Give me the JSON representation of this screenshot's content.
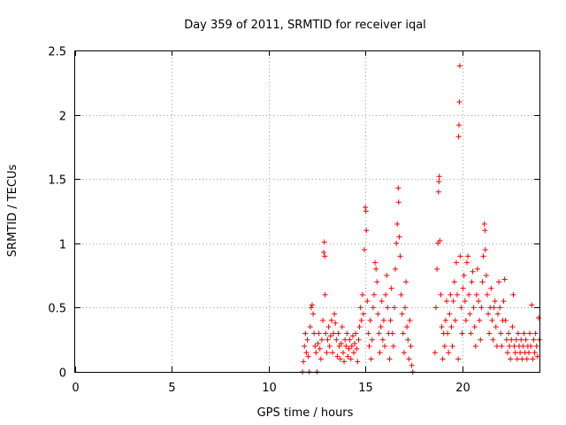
{
  "chart_data": {
    "type": "scatter",
    "title": "Day 359 of 2011, SRMTID for receiver iqal",
    "xlabel": "GPS time / hours",
    "ylabel": "SRMTID / TECUs",
    "xlim": [
      0,
      24
    ],
    "ylim": [
      0,
      2.5
    ],
    "xticks": [
      0,
      5,
      10,
      15,
      20
    ],
    "yticks": [
      0,
      0.5,
      1,
      1.5,
      2,
      2.5
    ],
    "xtick_labels": [
      "0",
      "5",
      "10",
      "15",
      "20"
    ],
    "ytick_labels": [
      "0",
      "0.5",
      "1",
      "1.5",
      "2",
      "2.5"
    ],
    "grid": true,
    "marker": "+",
    "color": "#ff0000",
    "series": [
      {
        "name": "SRMTID",
        "points": [
          [
            11.75,
            0.0
          ],
          [
            11.8,
            0.08
          ],
          [
            11.85,
            0.2
          ],
          [
            11.9,
            0.3
          ],
          [
            11.95,
            0.15
          ],
          [
            12.0,
            0.25
          ],
          [
            12.05,
            0.12
          ],
          [
            12.1,
            0.0
          ],
          [
            12.15,
            0.35
          ],
          [
            12.2,
            0.5
          ],
          [
            12.25,
            0.52
          ],
          [
            12.3,
            0.45
          ],
          [
            12.35,
            0.3
          ],
          [
            12.4,
            0.2
          ],
          [
            12.45,
            0.15
          ],
          [
            12.5,
            0.0
          ],
          [
            12.55,
            0.22
          ],
          [
            12.6,
            0.3
          ],
          [
            12.65,
            0.18
          ],
          [
            12.7,
            0.1
          ],
          [
            12.75,
            0.25
          ],
          [
            12.8,
            0.4
          ],
          [
            12.85,
            0.93
          ],
          [
            12.88,
            1.01
          ],
          [
            12.9,
            0.9
          ],
          [
            12.92,
            0.6
          ],
          [
            12.95,
            0.3
          ],
          [
            13.0,
            0.15
          ],
          [
            13.05,
            0.25
          ],
          [
            13.1,
            0.35
          ],
          [
            13.15,
            0.2
          ],
          [
            13.2,
            0.28
          ],
          [
            13.25,
            0.4
          ],
          [
            13.3,
            0.15
          ],
          [
            13.35,
            0.3
          ],
          [
            13.4,
            0.45
          ],
          [
            13.45,
            0.38
          ],
          [
            13.5,
            0.25
          ],
          [
            13.55,
            0.12
          ],
          [
            13.6,
            0.3
          ],
          [
            13.65,
            0.2
          ],
          [
            13.7,
            0.1
          ],
          [
            13.75,
            0.22
          ],
          [
            13.8,
            0.35
          ],
          [
            13.85,
            0.15
          ],
          [
            13.9,
            0.08
          ],
          [
            13.95,
            0.25
          ],
          [
            14.0,
            0.2
          ],
          [
            14.05,
            0.3
          ],
          [
            14.1,
            0.12
          ],
          [
            14.15,
            0.18
          ],
          [
            14.2,
            0.25
          ],
          [
            14.25,
            0.1
          ],
          [
            14.3,
            0.2
          ],
          [
            14.35,
            0.28
          ],
          [
            14.4,
            0.15
          ],
          [
            14.45,
            0.22
          ],
          [
            14.5,
            0.3
          ],
          [
            14.55,
            0.18
          ],
          [
            14.6,
            0.08
          ],
          [
            14.65,
            0.25
          ],
          [
            14.7,
            0.35
          ],
          [
            14.75,
            0.5
          ],
          [
            14.8,
            0.4
          ],
          [
            14.85,
            0.6
          ],
          [
            14.9,
            0.45
          ],
          [
            14.95,
            0.95
          ],
          [
            15.0,
            1.28
          ],
          [
            15.03,
            1.25
          ],
          [
            15.05,
            1.1
          ],
          [
            15.1,
            0.55
          ],
          [
            15.15,
            0.3
          ],
          [
            15.2,
            0.2
          ],
          [
            15.25,
            0.4
          ],
          [
            15.3,
            0.1
          ],
          [
            15.35,
            0.25
          ],
          [
            15.4,
            0.5
          ],
          [
            15.45,
            0.6
          ],
          [
            15.5,
            0.85
          ],
          [
            15.55,
            0.8
          ],
          [
            15.6,
            0.7
          ],
          [
            15.65,
            0.45
          ],
          [
            15.7,
            0.3
          ],
          [
            15.75,
            0.15
          ],
          [
            15.8,
            0.35
          ],
          [
            15.85,
            0.55
          ],
          [
            15.9,
            0.25
          ],
          [
            15.95,
            0.4
          ],
          [
            16.0,
            0.2
          ],
          [
            16.05,
            0.6
          ],
          [
            16.1,
            0.75
          ],
          [
            16.15,
            0.5
          ],
          [
            16.2,
            0.3
          ],
          [
            16.25,
            0.1
          ],
          [
            16.3,
            0.4
          ],
          [
            16.35,
            0.65
          ],
          [
            16.4,
            0.3
          ],
          [
            16.45,
            0.2
          ],
          [
            16.5,
            0.5
          ],
          [
            16.55,
            0.8
          ],
          [
            16.6,
            1.0
          ],
          [
            16.65,
            1.15
          ],
          [
            16.7,
            1.43
          ],
          [
            16.72,
            1.32
          ],
          [
            16.75,
            1.05
          ],
          [
            16.8,
            0.9
          ],
          [
            16.85,
            0.6
          ],
          [
            16.9,
            0.45
          ],
          [
            16.95,
            0.3
          ],
          [
            17.0,
            0.15
          ],
          [
            17.05,
            0.5
          ],
          [
            17.1,
            0.7
          ],
          [
            17.15,
            0.35
          ],
          [
            17.2,
            0.25
          ],
          [
            17.25,
            0.1
          ],
          [
            17.3,
            0.4
          ],
          [
            17.35,
            0.2
          ],
          [
            17.4,
            0.05
          ],
          [
            17.45,
            0.0
          ],
          [
            18.6,
            0.15
          ],
          [
            18.65,
            0.5
          ],
          [
            18.7,
            0.8
          ],
          [
            18.75,
            1.0
          ],
          [
            18.78,
            1.4
          ],
          [
            18.8,
            1.48
          ],
          [
            18.82,
            1.52
          ],
          [
            18.85,
            1.02
          ],
          [
            18.9,
            0.6
          ],
          [
            18.95,
            0.35
          ],
          [
            19.0,
            0.1
          ],
          [
            19.05,
            0.3
          ],
          [
            19.1,
            0.2
          ],
          [
            19.15,
            0.4
          ],
          [
            19.2,
            0.55
          ],
          [
            19.25,
            0.3
          ],
          [
            19.3,
            0.15
          ],
          [
            19.35,
            0.45
          ],
          [
            19.4,
            0.6
          ],
          [
            19.45,
            0.35
          ],
          [
            19.5,
            0.2
          ],
          [
            19.55,
            0.55
          ],
          [
            19.6,
            0.7
          ],
          [
            19.65,
            0.4
          ],
          [
            19.7,
            0.85
          ],
          [
            19.75,
            0.6
          ],
          [
            19.8,
            0.1
          ],
          [
            19.82,
            1.83
          ],
          [
            19.84,
            1.92
          ],
          [
            19.86,
            2.1
          ],
          [
            19.88,
            2.38
          ],
          [
            19.9,
            0.9
          ],
          [
            19.95,
            0.5
          ],
          [
            20.0,
            0.3
          ],
          [
            20.05,
            0.65
          ],
          [
            20.1,
            0.75
          ],
          [
            20.15,
            0.55
          ],
          [
            20.2,
            0.4
          ],
          [
            20.25,
            0.85
          ],
          [
            20.3,
            0.9
          ],
          [
            20.35,
            0.6
          ],
          [
            20.4,
            0.45
          ],
          [
            20.45,
            0.3
          ],
          [
            20.5,
            0.7
          ],
          [
            20.55,
            0.78
          ],
          [
            20.6,
            0.5
          ],
          [
            20.65,
            0.35
          ],
          [
            20.7,
            0.2
          ],
          [
            20.75,
            0.6
          ],
          [
            20.8,
            0.8
          ],
          [
            20.85,
            0.55
          ],
          [
            20.9,
            0.4
          ],
          [
            20.95,
            0.25
          ],
          [
            21.0,
            0.5
          ],
          [
            21.05,
            0.7
          ],
          [
            21.1,
            0.9
          ],
          [
            21.15,
            1.15
          ],
          [
            21.18,
            1.1
          ],
          [
            21.2,
            0.95
          ],
          [
            21.25,
            0.75
          ],
          [
            21.3,
            0.6
          ],
          [
            21.35,
            0.45
          ],
          [
            21.4,
            0.3
          ],
          [
            21.45,
            0.5
          ],
          [
            21.5,
            0.65
          ],
          [
            21.55,
            0.4
          ],
          [
            21.6,
            0.25
          ],
          [
            21.65,
            0.5
          ],
          [
            21.7,
            0.55
          ],
          [
            21.75,
            0.35
          ],
          [
            21.8,
            0.2
          ],
          [
            21.85,
            0.45
          ],
          [
            21.9,
            0.7
          ],
          [
            21.95,
            0.5
          ],
          [
            22.0,
            0.3
          ],
          [
            22.05,
            0.2
          ],
          [
            22.1,
            0.4
          ],
          [
            22.15,
            0.55
          ],
          [
            22.2,
            0.72
          ],
          [
            22.25,
            0.4
          ],
          [
            22.3,
            0.25
          ],
          [
            22.35,
            0.15
          ],
          [
            22.4,
            0.3
          ],
          [
            22.45,
            0.2
          ],
          [
            22.5,
            0.1
          ],
          [
            22.55,
            0.25
          ],
          [
            22.6,
            0.35
          ],
          [
            22.65,
            0.6
          ],
          [
            22.7,
            0.2
          ],
          [
            22.75,
            0.15
          ],
          [
            22.8,
            0.25
          ],
          [
            22.85,
            0.1
          ],
          [
            22.9,
            0.3
          ],
          [
            22.95,
            0.2
          ],
          [
            23.0,
            0.15
          ],
          [
            23.05,
            0.25
          ],
          [
            23.1,
            0.1
          ],
          [
            23.15,
            0.2
          ],
          [
            23.2,
            0.3
          ],
          [
            23.25,
            0.15
          ],
          [
            23.3,
            0.25
          ],
          [
            23.35,
            0.1
          ],
          [
            23.4,
            0.2
          ],
          [
            23.45,
            0.15
          ],
          [
            23.5,
            0.3
          ],
          [
            23.55,
            0.2
          ],
          [
            23.6,
            0.52
          ],
          [
            23.65,
            0.1
          ],
          [
            23.7,
            0.25
          ],
          [
            23.75,
            0.15
          ],
          [
            23.8,
            0.3
          ],
          [
            23.85,
            0.2
          ],
          [
            23.9,
            0.12
          ],
          [
            23.95,
            0.42
          ],
          [
            24.0,
            0.25
          ]
        ]
      }
    ]
  }
}
